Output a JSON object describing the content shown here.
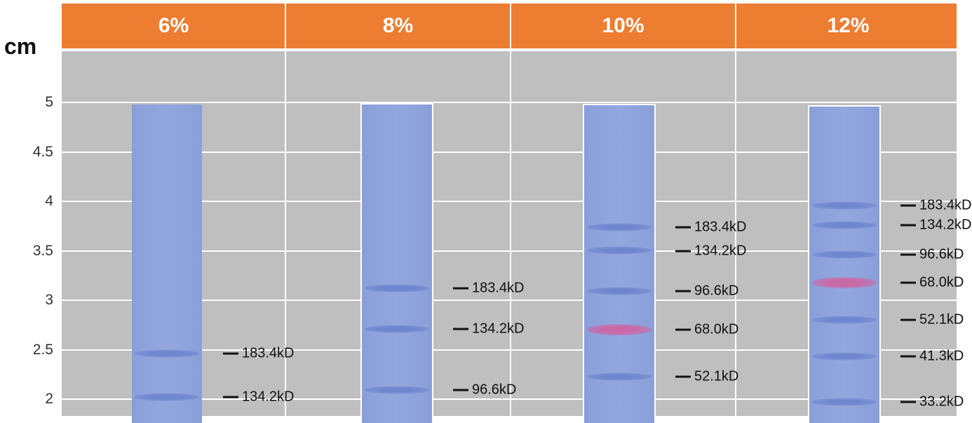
{
  "unit_label": "cm",
  "y_axis": {
    "ticks": [
      "5",
      "4.5",
      "4",
      "3.5",
      "3",
      "2.5",
      "2"
    ],
    "tick_values": [
      5,
      4.5,
      4,
      3.5,
      3,
      2.5,
      2
    ],
    "range": [
      1.95,
      5.5
    ]
  },
  "colors": {
    "header": "#EC7D31",
    "background": "#BFBFBF",
    "lane": "#8FA3DC",
    "band": "#6F86CF",
    "prestained_band": "#C96AA8"
  },
  "gels": [
    {
      "percent": "6%",
      "lane_top_cm": 4.98,
      "bands": [
        {
          "label": "183.4kD",
          "cm": 2.46
        },
        {
          "label": "134.2kD",
          "cm": 2.02
        }
      ]
    },
    {
      "percent": "8%",
      "lane_top_cm": 4.98,
      "bands": [
        {
          "label": "183.4kD",
          "cm": 3.12
        },
        {
          "label": "134.2kD",
          "cm": 2.71
        },
        {
          "label": "96.6kD",
          "cm": 2.09
        }
      ]
    },
    {
      "percent": "10%",
      "lane_top_cm": 4.97,
      "bands": [
        {
          "label": "183.4kD",
          "cm": 3.74
        },
        {
          "label": "134.2kD",
          "cm": 3.5
        },
        {
          "label": "96.6kD",
          "cm": 3.09
        },
        {
          "label": "68.0kD",
          "cm": 2.7
        },
        {
          "label": "52.1kD",
          "cm": 2.23
        }
      ]
    },
    {
      "percent": "12%",
      "lane_top_cm": 4.96,
      "bands": [
        {
          "label": "183.4kD",
          "cm": 3.96
        },
        {
          "label": "134.2kD",
          "cm": 3.76
        },
        {
          "label": "96.6kD",
          "cm": 3.46
        },
        {
          "label": "68.0kD",
          "cm": 3.18
        },
        {
          "label": "52.1kD",
          "cm": 2.8
        },
        {
          "label": "41.3kD",
          "cm": 2.43
        },
        {
          "label": "33.2kD",
          "cm": 1.97
        }
      ]
    }
  ]
}
